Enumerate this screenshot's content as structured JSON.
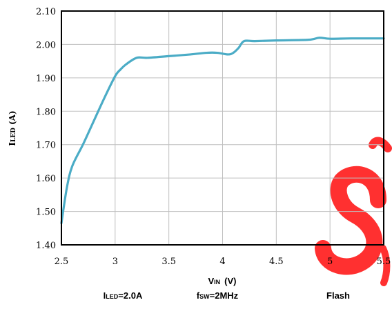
{
  "chart_data": {
    "type": "line",
    "xlabel_main": "V",
    "xlabel_sub": "IN",
    "xlabel_unit": "(V)",
    "ylabel_main": "I",
    "ylabel_sub": "LED",
    "ylabel_unit": "(A)",
    "xlim": [
      2.5,
      5.5
    ],
    "ylim": [
      1.4,
      2.1
    ],
    "x_ticks": [
      2.5,
      3,
      3.5,
      4,
      4.5,
      5,
      5.5
    ],
    "x_tick_labels": [
      "2.5",
      "3",
      "3.5",
      "4",
      "4.5",
      "5",
      "5.5"
    ],
    "y_ticks": [
      1.4,
      1.5,
      1.6,
      1.7,
      1.8,
      1.9,
      2.0,
      2.1
    ],
    "y_tick_labels": [
      "1.40",
      "1.50",
      "1.60",
      "1.70",
      "1.80",
      "1.90",
      "2.00",
      "2.10"
    ],
    "grid": true,
    "series": [
      {
        "color": "#4bacc6",
        "x": [
          2.5,
          2.55,
          2.6,
          2.7,
          2.8,
          2.9,
          3.0,
          3.05,
          3.1,
          3.2,
          3.3,
          3.5,
          3.7,
          3.85,
          3.95,
          4.05,
          4.1,
          4.15,
          4.2,
          4.3,
          4.5,
          4.8,
          4.9,
          5.0,
          5.2,
          5.5
        ],
        "y": [
          1.465,
          1.57,
          1.635,
          1.7,
          1.77,
          1.84,
          1.905,
          1.925,
          1.94,
          1.96,
          1.96,
          1.965,
          1.97,
          1.975,
          1.975,
          1.97,
          1.975,
          1.99,
          2.01,
          2.01,
          2.012,
          2.014,
          2.02,
          2.017,
          2.018,
          2.018
        ]
      }
    ]
  },
  "conditions": {
    "iled": "I",
    "iled_sub": "LED",
    "iled_value": "=2.0A",
    "fsw": "f",
    "fsw_sub": "SW",
    "fsw_value": "=2MHz",
    "mode": "Flash"
  },
  "colors": {
    "line": "#4bacc6",
    "grid": "#bfbfbf",
    "frame": "#000000",
    "watermark": "#ff0000"
  }
}
